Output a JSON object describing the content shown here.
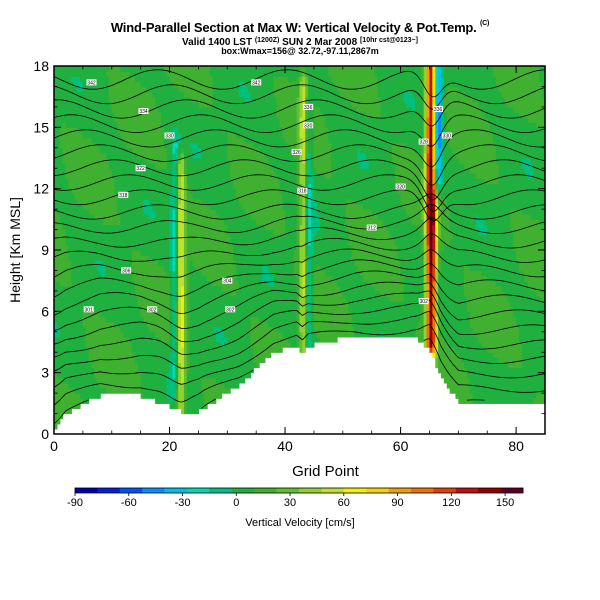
{
  "title": {
    "main": "Wind-Parallel Section at Max W: Vertical Velocity & Pot.Temp.",
    "copyright_mark": "(C)",
    "valid_line": "Valid 1400 LST",
    "valid_utc": "(1200Z)",
    "valid_date": "SUN 2 Mar 2008",
    "valid_run": "[10hr cst@0123~]",
    "location_line": "box:Wmax=156@ 32.72,-97.11,2867m"
  },
  "chart_data": {
    "type": "heatmap",
    "title": "Wind-Parallel Section at Max W: Vertical Velocity & Pot.Temp.",
    "xlabel": "Grid Point",
    "ylabel": "Height [Km MSL]",
    "xlim": [
      0,
      85
    ],
    "ylim": [
      0,
      18
    ],
    "x_ticks": [
      0,
      20,
      40,
      60,
      80
    ],
    "y_ticks": [
      0,
      3,
      6,
      9,
      12,
      15,
      18
    ],
    "colorbar": {
      "label": "Vertical Velocity [cm/s]",
      "min": -90,
      "max": 160,
      "ticks": [
        -90,
        -60,
        -30,
        0,
        30,
        60,
        90,
        120,
        150
      ],
      "colors": [
        "#0000b0",
        "#0020e0",
        "#0050ff",
        "#0090ff",
        "#00c0e8",
        "#00d8b8",
        "#00c080",
        "#20b040",
        "#40b030",
        "#60c030",
        "#90d030",
        "#c0e030",
        "#f0f000",
        "#f8d000",
        "#f0a000",
        "#f07000",
        "#e04000",
        "#c01010",
        "#900000",
        "#600020"
      ]
    },
    "w_field": {
      "background_value": 8,
      "features": [
        {
          "name": "updraft-core",
          "x": 65.3,
          "z_low": 4.5,
          "z_high": 18,
          "peak": 156
        },
        {
          "name": "downdraft-core",
          "x": 66.3,
          "z_low": 12.5,
          "z_high": 18,
          "peak": -85
        },
        {
          "name": "updraft-lee-20",
          "x": 22.0,
          "z_low": 1.0,
          "z_high": 13,
          "peak": 60
        },
        {
          "name": "downdraft-lee-20",
          "x": 21.0,
          "z_low": 3.0,
          "z_high": 14,
          "peak": -30
        },
        {
          "name": "updraft-lee-43",
          "x": 43.2,
          "z_low": 4.0,
          "z_high": 17,
          "peak": 50
        },
        {
          "name": "downdraft-lee-43",
          "x": 44.0,
          "z_low": 4.0,
          "z_high": 16,
          "peak": -30
        }
      ]
    },
    "terrain_km": [
      [
        0,
        0.3
      ],
      [
        1,
        0.6
      ],
      [
        2,
        1.0
      ],
      [
        8,
        1.9
      ],
      [
        15,
        1.9
      ],
      [
        18,
        1.6
      ],
      [
        22,
        1.1
      ],
      [
        25,
        1.1
      ],
      [
        32,
        2.4
      ],
      [
        38,
        4.0
      ],
      [
        42,
        4.3
      ],
      [
        43,
        3.9
      ],
      [
        44,
        4.3
      ],
      [
        52,
        4.8
      ],
      [
        60,
        4.8
      ],
      [
        62,
        4.8
      ],
      [
        65,
        4.2
      ],
      [
        67,
        2.8
      ],
      [
        70,
        1.6
      ],
      [
        75,
        1.6
      ],
      [
        85,
        1.6
      ]
    ],
    "theta_contour_labels": [
      {
        "x": 6.5,
        "z": 17.2,
        "text": "342"
      },
      {
        "x": 15.5,
        "z": 15.8,
        "text": "334"
      },
      {
        "x": 20.0,
        "z": 14.6,
        "text": "330"
      },
      {
        "x": 15.0,
        "z": 13.0,
        "text": "322"
      },
      {
        "x": 12.0,
        "z": 11.7,
        "text": "318"
      },
      {
        "x": 12.5,
        "z": 8.0,
        "text": "306"
      },
      {
        "x": 6.0,
        "z": 6.1,
        "text": "301"
      },
      {
        "x": 17.0,
        "z": 6.1,
        "text": "302"
      },
      {
        "x": 30.0,
        "z": 7.5,
        "text": "304"
      },
      {
        "x": 30.5,
        "z": 6.1,
        "text": "302"
      },
      {
        "x": 35.0,
        "z": 17.2,
        "text": "342"
      },
      {
        "x": 42.0,
        "z": 13.8,
        "text": "326"
      },
      {
        "x": 43.0,
        "z": 11.9,
        "text": "318"
      },
      {
        "x": 44.0,
        "z": 16.0,
        "text": "336"
      },
      {
        "x": 44.0,
        "z": 15.1,
        "text": "330"
      },
      {
        "x": 55.0,
        "z": 10.1,
        "text": "312"
      },
      {
        "x": 60.0,
        "z": 12.1,
        "text": "320"
      },
      {
        "x": 64.0,
        "z": 14.3,
        "text": "328"
      },
      {
        "x": 66.5,
        "z": 15.9,
        "text": "336"
      },
      {
        "x": 68.0,
        "z": 14.6,
        "text": "330"
      },
      {
        "x": 64.0,
        "z": 6.5,
        "text": "302"
      }
    ]
  }
}
